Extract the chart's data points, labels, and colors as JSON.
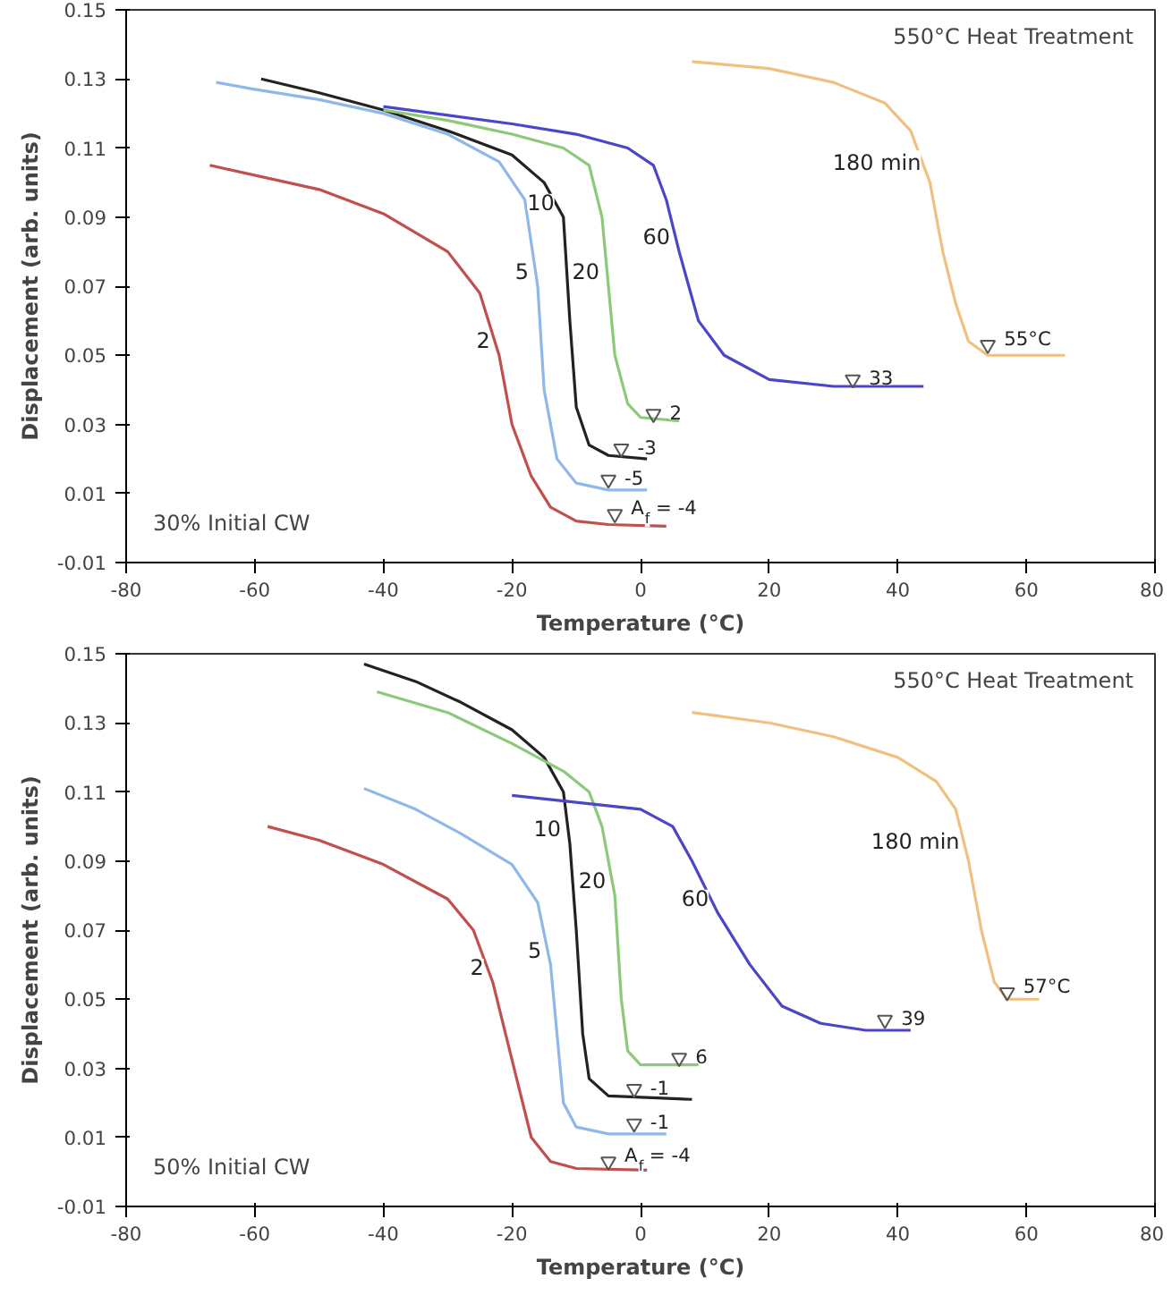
{
  "chart_data": [
    {
      "type": "line",
      "xlabel": "Temperature (°C)",
      "ylabel": "Displacement (arb. units)",
      "xlim": [
        -80,
        80
      ],
      "ylim": [
        -0.01,
        0.15
      ],
      "xticks": [
        -80,
        -60,
        -40,
        -20,
        0,
        20,
        40,
        60,
        80
      ],
      "yticks": [
        -0.01,
        0.01,
        0.03,
        0.05,
        0.07,
        0.09,
        0.11,
        0.13,
        0.15
      ],
      "grid": false,
      "legend": false,
      "annotations": [
        "550°C Heat Treatment",
        "30% Initial CW",
        {
          "text": "A$_{f}$ = -4",
          "x": -4,
          "y": 0.004
        },
        {
          "text": "-5",
          "x": -5,
          "y": 0.014
        },
        {
          "text": "-3",
          "x": -3,
          "y": 0.023
        },
        {
          "text": "2",
          "x": 2,
          "y": 0.033
        },
        {
          "text": "33",
          "x": 33,
          "y": 0.043
        },
        {
          "text": "55°C",
          "x": 54,
          "y": 0.053
        }
      ],
      "series": [
        {
          "name": "2",
          "color": "#c0504d",
          "x": [
            -67,
            -50,
            -40,
            -30,
            -25,
            -22,
            -20,
            -17,
            -14,
            -10,
            -5,
            4
          ],
          "values": [
            0.105,
            0.098,
            0.091,
            0.08,
            0.068,
            0.05,
            0.03,
            0.015,
            0.006,
            0.002,
            0.001,
            0.0005
          ]
        },
        {
          "name": "5",
          "color": "#8fb8e8",
          "x": [
            -66,
            -60,
            -50,
            -40,
            -30,
            -22,
            -18,
            -16,
            -15,
            -13,
            -10,
            -5,
            1
          ],
          "values": [
            0.129,
            0.127,
            0.124,
            0.12,
            0.114,
            0.106,
            0.095,
            0.07,
            0.04,
            0.02,
            0.013,
            0.011,
            0.011
          ]
        },
        {
          "name": "10",
          "color": "#222222",
          "x": [
            -59,
            -50,
            -40,
            -30,
            -20,
            -15,
            -12,
            -11,
            -10,
            -8,
            -5,
            1
          ],
          "values": [
            0.13,
            0.126,
            0.121,
            0.115,
            0.108,
            0.1,
            0.09,
            0.06,
            0.035,
            0.024,
            0.021,
            0.02
          ]
        },
        {
          "name": "20",
          "color": "#8cc97a",
          "x": [
            -40,
            -30,
            -20,
            -12,
            -8,
            -6,
            -5,
            -4,
            -2,
            0,
            6
          ],
          "values": [
            0.121,
            0.118,
            0.114,
            0.11,
            0.105,
            0.09,
            0.07,
            0.05,
            0.036,
            0.032,
            0.031
          ]
        },
        {
          "name": "60",
          "color": "#4b45c8",
          "x": [
            -40,
            -20,
            -10,
            -2,
            2,
            4,
            6,
            9,
            13,
            20,
            30,
            44
          ],
          "values": [
            0.122,
            0.117,
            0.114,
            0.11,
            0.105,
            0.095,
            0.08,
            0.06,
            0.05,
            0.043,
            0.041,
            0.041
          ]
        },
        {
          "name": "180 min",
          "color": "#f0c080",
          "x": [
            8,
            20,
            30,
            38,
            42,
            45,
            47,
            49,
            51,
            54,
            66
          ],
          "values": [
            0.135,
            0.133,
            0.129,
            0.123,
            0.115,
            0.1,
            0.08,
            0.065,
            0.054,
            0.05,
            0.05
          ]
        },
        {
          "type": "scatter",
          "marker": "triangle",
          "color": "#555555",
          "x": [
            -4,
            -5,
            -3,
            2,
            33,
            54
          ],
          "values": [
            0.004,
            0.014,
            0.023,
            0.033,
            0.043,
            0.053
          ]
        }
      ]
    },
    {
      "type": "line",
      "xlabel": "Temperature (°C)",
      "ylabel": "Displacement (arb. units)",
      "xlim": [
        -80,
        80
      ],
      "ylim": [
        -0.01,
        0.15
      ],
      "xticks": [
        -80,
        -60,
        -40,
        -20,
        0,
        20,
        40,
        60,
        80
      ],
      "yticks": [
        -0.01,
        0.01,
        0.03,
        0.05,
        0.07,
        0.09,
        0.11,
        0.13,
        0.15
      ],
      "grid": false,
      "legend": false,
      "annotations": [
        "550°C Heat Treatment",
        "50% Initial CW",
        {
          "text": "A$_{f}$ = -4",
          "x": -5,
          "y": 0.003
        },
        {
          "text": "-1",
          "x": -1,
          "y": 0.014
        },
        {
          "text": "-1",
          "x": -1,
          "y": 0.024
        },
        {
          "text": "6",
          "x": 6,
          "y": 0.033
        },
        {
          "text": "39",
          "x": 38,
          "y": 0.044
        },
        {
          "text": "57°C",
          "x": 57,
          "y": 0.052
        }
      ],
      "series": [
        {
          "name": "2",
          "color": "#c0504d",
          "x": [
            -58,
            -50,
            -40,
            -30,
            -26,
            -23,
            -21,
            -19,
            -17,
            -14,
            -10,
            1
          ],
          "values": [
            0.1,
            0.096,
            0.089,
            0.079,
            0.07,
            0.055,
            0.04,
            0.025,
            0.01,
            0.003,
            0.001,
            0.0005
          ]
        },
        {
          "name": "5",
          "color": "#8fb8e8",
          "x": [
            -43,
            -35,
            -28,
            -20,
            -16,
            -14,
            -13,
            -12,
            -10,
            -5,
            4
          ],
          "values": [
            0.111,
            0.105,
            0.098,
            0.089,
            0.078,
            0.06,
            0.04,
            0.02,
            0.013,
            0.011,
            0.011
          ]
        },
        {
          "name": "10",
          "color": "#222222",
          "x": [
            -43,
            -35,
            -28,
            -20,
            -15,
            -12,
            -11,
            -10,
            -9,
            -8,
            -5,
            8
          ],
          "values": [
            0.147,
            0.142,
            0.136,
            0.128,
            0.12,
            0.11,
            0.095,
            0.07,
            0.04,
            0.027,
            0.022,
            0.021
          ]
        },
        {
          "name": "20",
          "color": "#8cc97a",
          "x": [
            -41,
            -30,
            -20,
            -12,
            -8,
            -6,
            -4,
            -3,
            -2,
            0,
            9
          ],
          "values": [
            0.139,
            0.133,
            0.124,
            0.116,
            0.11,
            0.1,
            0.08,
            0.05,
            0.035,
            0.031,
            0.031
          ]
        },
        {
          "name": "60",
          "color": "#4b45c8",
          "x": [
            -20,
            -10,
            0,
            5,
            8,
            12,
            17,
            22,
            28,
            35,
            42
          ],
          "values": [
            0.109,
            0.107,
            0.105,
            0.1,
            0.09,
            0.075,
            0.06,
            0.048,
            0.043,
            0.041,
            0.041
          ]
        },
        {
          "name": "180 min",
          "color": "#f0c080",
          "x": [
            8,
            20,
            30,
            40,
            46,
            49,
            51,
            53,
            55,
            57,
            62
          ],
          "values": [
            0.133,
            0.13,
            0.126,
            0.12,
            0.113,
            0.105,
            0.09,
            0.07,
            0.055,
            0.05,
            0.05
          ]
        },
        {
          "type": "scatter",
          "marker": "triangle",
          "color": "#555555",
          "x": [
            -5,
            -1,
            -1,
            6,
            38,
            57
          ],
          "values": [
            0.003,
            0.014,
            0.024,
            0.033,
            0.044,
            0.052
          ]
        }
      ]
    }
  ]
}
